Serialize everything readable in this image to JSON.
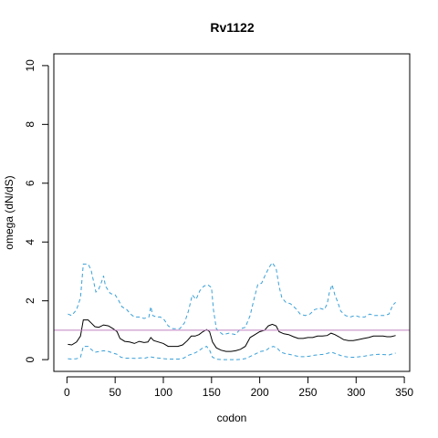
{
  "chart_data": {
    "type": "line",
    "title": "Rv1122",
    "xlabel": "codon",
    "ylabel": "omega (dN/dS)",
    "xlim": [
      -13.6,
      355.6
    ],
    "ylim": [
      -0.4,
      10.4
    ],
    "xticks": [
      0,
      50,
      100,
      150,
      200,
      250,
      300,
      350
    ],
    "yticks": [
      0,
      2,
      4,
      6,
      8,
      10
    ],
    "grid": false,
    "reference_line": {
      "y": 1,
      "color": "#c080c0"
    },
    "series": [
      {
        "role": "upper",
        "color": "#3aa0d8",
        "style": "dashed",
        "points": [
          [
            1,
            1.55
          ],
          [
            5,
            1.5
          ],
          [
            10,
            1.7
          ],
          [
            14,
            2.1
          ],
          [
            17,
            3.25
          ],
          [
            22,
            3.25
          ],
          [
            25,
            3.05
          ],
          [
            30,
            2.3
          ],
          [
            33,
            2.4
          ],
          [
            36,
            2.65
          ],
          [
            38,
            2.85
          ],
          [
            40,
            2.5
          ],
          [
            45,
            2.25
          ],
          [
            50,
            2.2
          ],
          [
            53,
            2.05
          ],
          [
            57,
            1.8
          ],
          [
            62,
            1.7
          ],
          [
            66,
            1.55
          ],
          [
            70,
            1.45
          ],
          [
            75,
            1.45
          ],
          [
            80,
            1.4
          ],
          [
            85,
            1.45
          ],
          [
            87,
            1.8
          ],
          [
            89,
            1.5
          ],
          [
            93,
            1.45
          ],
          [
            97,
            1.45
          ],
          [
            101,
            1.35
          ],
          [
            105,
            1.15
          ],
          [
            110,
            1.05
          ],
          [
            117,
            1.05
          ],
          [
            122,
            1.25
          ],
          [
            126,
            1.65
          ],
          [
            130,
            2.2
          ],
          [
            134,
            2.05
          ],
          [
            138,
            2.35
          ],
          [
            142,
            2.5
          ],
          [
            146,
            2.55
          ],
          [
            150,
            2.45
          ],
          [
            152,
            1.7
          ],
          [
            155,
            1.05
          ],
          [
            158,
            0.95
          ],
          [
            162,
            0.85
          ],
          [
            168,
            0.9
          ],
          [
            175,
            0.85
          ],
          [
            180,
            1.05
          ],
          [
            185,
            1.1
          ],
          [
            190,
            1.5
          ],
          [
            194,
            2.05
          ],
          [
            198,
            2.55
          ],
          [
            202,
            2.6
          ],
          [
            206,
            2.9
          ],
          [
            210,
            3.15
          ],
          [
            213,
            3.3
          ],
          [
            217,
            3.1
          ],
          [
            220,
            2.5
          ],
          [
            223,
            2.1
          ],
          [
            227,
            1.95
          ],
          [
            232,
            1.9
          ],
          [
            237,
            1.75
          ],
          [
            242,
            1.55
          ],
          [
            247,
            1.5
          ],
          [
            252,
            1.55
          ],
          [
            257,
            1.7
          ],
          [
            262,
            1.75
          ],
          [
            267,
            1.7
          ],
          [
            270,
            1.9
          ],
          [
            272,
            2.25
          ],
          [
            275,
            2.55
          ],
          [
            278,
            2.2
          ],
          [
            281,
            1.95
          ],
          [
            284,
            1.65
          ],
          [
            289,
            1.5
          ],
          [
            294,
            1.45
          ],
          [
            299,
            1.5
          ],
          [
            304,
            1.45
          ],
          [
            309,
            1.45
          ],
          [
            314,
            1.55
          ],
          [
            319,
            1.5
          ],
          [
            324,
            1.5
          ],
          [
            329,
            1.5
          ],
          [
            334,
            1.55
          ],
          [
            338,
            1.85
          ],
          [
            341,
            1.95
          ]
        ]
      },
      {
        "role": "estimate",
        "color": "#000000",
        "style": "solid",
        "points": [
          [
            1,
            0.52
          ],
          [
            5,
            0.5
          ],
          [
            10,
            0.6
          ],
          [
            14,
            0.8
          ],
          [
            17,
            1.35
          ],
          [
            22,
            1.35
          ],
          [
            25,
            1.25
          ],
          [
            29,
            1.12
          ],
          [
            33,
            1.1
          ],
          [
            38,
            1.18
          ],
          [
            43,
            1.15
          ],
          [
            48,
            1.05
          ],
          [
            52,
            0.95
          ],
          [
            55,
            0.72
          ],
          [
            60,
            0.62
          ],
          [
            65,
            0.6
          ],
          [
            70,
            0.55
          ],
          [
            75,
            0.62
          ],
          [
            80,
            0.58
          ],
          [
            84,
            0.6
          ],
          [
            87,
            0.75
          ],
          [
            90,
            0.65
          ],
          [
            95,
            0.6
          ],
          [
            100,
            0.55
          ],
          [
            105,
            0.45
          ],
          [
            110,
            0.45
          ],
          [
            115,
            0.45
          ],
          [
            120,
            0.5
          ],
          [
            125,
            0.65
          ],
          [
            129,
            0.8
          ],
          [
            133,
            0.8
          ],
          [
            137,
            0.85
          ],
          [
            141,
            0.95
          ],
          [
            145,
            1.02
          ],
          [
            148,
            0.95
          ],
          [
            151,
            0.6
          ],
          [
            155,
            0.4
          ],
          [
            160,
            0.32
          ],
          [
            165,
            0.28
          ],
          [
            170,
            0.28
          ],
          [
            175,
            0.3
          ],
          [
            180,
            0.35
          ],
          [
            185,
            0.45
          ],
          [
            190,
            0.75
          ],
          [
            195,
            0.85
          ],
          [
            200,
            0.95
          ],
          [
            205,
            1.0
          ],
          [
            209,
            1.15
          ],
          [
            213,
            1.2
          ],
          [
            217,
            1.15
          ],
          [
            220,
            0.95
          ],
          [
            225,
            0.88
          ],
          [
            230,
            0.85
          ],
          [
            235,
            0.78
          ],
          [
            240,
            0.72
          ],
          [
            245,
            0.72
          ],
          [
            250,
            0.75
          ],
          [
            255,
            0.75
          ],
          [
            260,
            0.8
          ],
          [
            265,
            0.8
          ],
          [
            270,
            0.82
          ],
          [
            274,
            0.9
          ],
          [
            278,
            0.85
          ],
          [
            282,
            0.78
          ],
          [
            287,
            0.68
          ],
          [
            292,
            0.65
          ],
          [
            297,
            0.65
          ],
          [
            302,
            0.68
          ],
          [
            308,
            0.72
          ],
          [
            313,
            0.75
          ],
          [
            318,
            0.8
          ],
          [
            323,
            0.8
          ],
          [
            328,
            0.8
          ],
          [
            332,
            0.78
          ],
          [
            336,
            0.78
          ],
          [
            341,
            0.82
          ]
        ]
      },
      {
        "role": "lower",
        "color": "#3aa0d8",
        "style": "dashed",
        "points": [
          [
            1,
            0.03
          ],
          [
            5,
            0.02
          ],
          [
            10,
            0.03
          ],
          [
            14,
            0.08
          ],
          [
            17,
            0.45
          ],
          [
            22,
            0.45
          ],
          [
            25,
            0.35
          ],
          [
            29,
            0.25
          ],
          [
            34,
            0.28
          ],
          [
            38,
            0.3
          ],
          [
            43,
            0.28
          ],
          [
            48,
            0.22
          ],
          [
            52,
            0.18
          ],
          [
            56,
            0.08
          ],
          [
            61,
            0.05
          ],
          [
            66,
            0.05
          ],
          [
            71,
            0.04
          ],
          [
            76,
            0.06
          ],
          [
            81,
            0.05
          ],
          [
            86,
            0.1
          ],
          [
            91,
            0.07
          ],
          [
            96,
            0.05
          ],
          [
            101,
            0.03
          ],
          [
            106,
            0.02
          ],
          [
            111,
            0.02
          ],
          [
            116,
            0.02
          ],
          [
            121,
            0.05
          ],
          [
            126,
            0.15
          ],
          [
            131,
            0.2
          ],
          [
            136,
            0.28
          ],
          [
            141,
            0.4
          ],
          [
            145,
            0.45
          ],
          [
            148,
            0.32
          ],
          [
            151,
            0.08
          ],
          [
            156,
            0.01
          ],
          [
            161,
            0.0
          ],
          [
            166,
            0.0
          ],
          [
            171,
            0.0
          ],
          [
            176,
            0.0
          ],
          [
            181,
            0.01
          ],
          [
            186,
            0.04
          ],
          [
            191,
            0.12
          ],
          [
            196,
            0.2
          ],
          [
            201,
            0.28
          ],
          [
            206,
            0.3
          ],
          [
            210,
            0.4
          ],
          [
            214,
            0.45
          ],
          [
            218,
            0.4
          ],
          [
            222,
            0.25
          ],
          [
            227,
            0.2
          ],
          [
            232,
            0.17
          ],
          [
            237,
            0.13
          ],
          [
            242,
            0.1
          ],
          [
            247,
            0.1
          ],
          [
            252,
            0.12
          ],
          [
            257,
            0.15
          ],
          [
            262,
            0.17
          ],
          [
            267,
            0.18
          ],
          [
            271,
            0.22
          ],
          [
            275,
            0.25
          ],
          [
            279,
            0.2
          ],
          [
            284,
            0.14
          ],
          [
            289,
            0.1
          ],
          [
            294,
            0.08
          ],
          [
            299,
            0.08
          ],
          [
            304,
            0.1
          ],
          [
            309,
            0.12
          ],
          [
            314,
            0.15
          ],
          [
            319,
            0.17
          ],
          [
            324,
            0.18
          ],
          [
            329,
            0.17
          ],
          [
            334,
            0.16
          ],
          [
            338,
            0.2
          ],
          [
            341,
            0.22
          ]
        ]
      }
    ]
  }
}
